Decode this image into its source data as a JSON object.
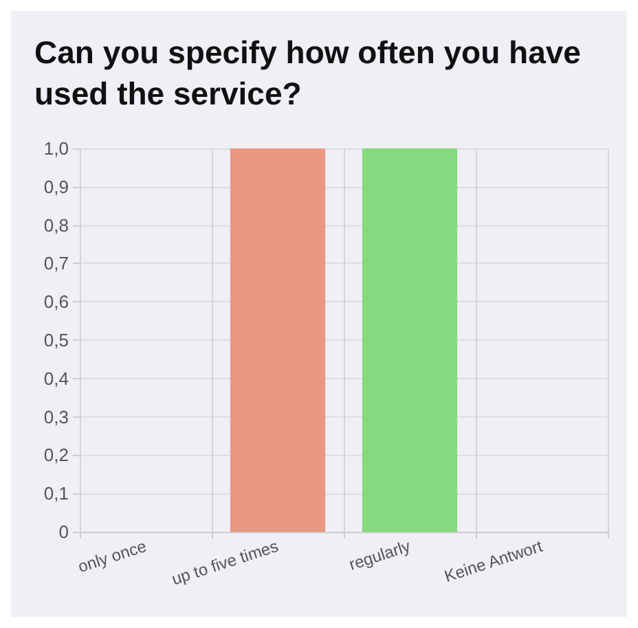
{
  "chart_data": {
    "type": "bar",
    "title": "Can you specify how often you have used the service?",
    "categories": [
      "only once",
      "up to five times",
      "regularly",
      "Keine Antwort"
    ],
    "values": [
      0,
      1,
      1,
      0
    ],
    "colors": [
      null,
      "#ea9882",
      "#86d97f",
      null
    ],
    "ylim": [
      0,
      1
    ],
    "yticks": [
      0,
      {
        "value": 0.1,
        "label": "0,1"
      },
      {
        "value": 0.2,
        "label": "0,2"
      },
      {
        "value": 0.3,
        "label": "0,3"
      },
      {
        "value": 0.4,
        "label": "0,4"
      },
      {
        "value": 0.5,
        "label": "0,5"
      },
      {
        "value": 0.6,
        "label": "0,6"
      },
      {
        "value": 0.7,
        "label": "0,7"
      },
      {
        "value": 0.8,
        "label": "0,8"
      },
      {
        "value": 0.9,
        "label": "0,9"
      },
      {
        "value": 1,
        "label": "1,0"
      }
    ],
    "grid": true
  }
}
